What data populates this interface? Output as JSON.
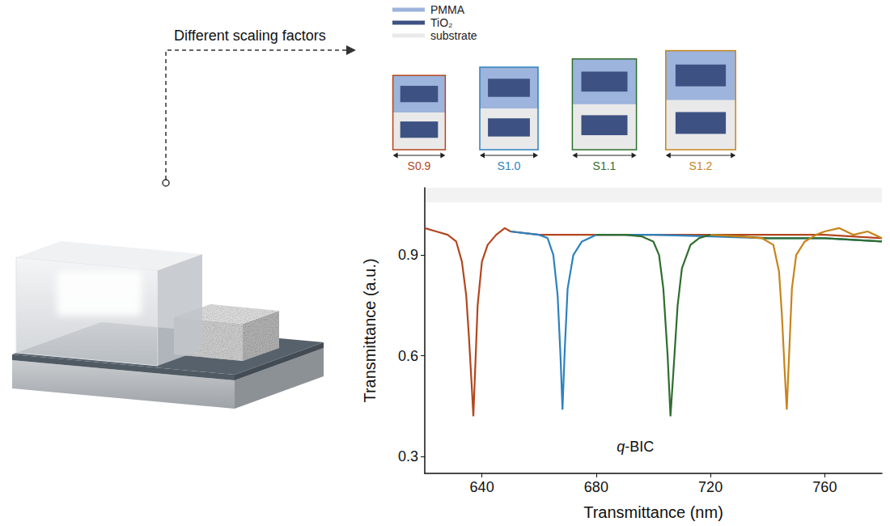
{
  "diagram": {
    "arrow_label": "Different scaling factors",
    "materials": [
      {
        "label": "PMMA",
        "color": "#9db4dc"
      },
      {
        "label": "TiO₂",
        "color": "#3d5282"
      },
      {
        "label": "substrate",
        "color": "#e9e9e9"
      }
    ]
  },
  "chart_data": {
    "type": "line",
    "x_label": "Transmittance (nm)",
    "y_label": "Transmittance (a.u.)",
    "annotation": "q-BIC",
    "xlim": [
      620,
      780
    ],
    "xticks": [
      640,
      680,
      720,
      760
    ],
    "ylim": [
      0.25,
      1.1
    ],
    "yticks": [
      0.3,
      0.6,
      0.9
    ],
    "grid": false,
    "series": [
      {
        "name": "S0.9",
        "scaling_factor": 0.9,
        "color": "#b3471e",
        "x": [
          620,
          624,
          628,
          631,
          633,
          634.5,
          635.5,
          636.5,
          637,
          637.6,
          638.5,
          640,
          642,
          645,
          648,
          650,
          660,
          680,
          700,
          720,
          740,
          760,
          780
        ],
        "values": [
          0.98,
          0.97,
          0.96,
          0.94,
          0.88,
          0.78,
          0.65,
          0.5,
          0.42,
          0.55,
          0.75,
          0.88,
          0.93,
          0.96,
          0.98,
          0.97,
          0.96,
          0.96,
          0.96,
          0.96,
          0.96,
          0.96,
          0.95
        ]
      },
      {
        "name": "S1.0",
        "scaling_factor": 1.0,
        "color": "#2d82bf",
        "x": [
          650,
          655,
          660,
          663,
          665,
          666.5,
          667.5,
          668.2,
          669,
          670,
          672,
          675,
          680,
          700,
          720,
          740,
          760,
          780
        ],
        "values": [
          0.97,
          0.965,
          0.96,
          0.95,
          0.9,
          0.78,
          0.6,
          0.44,
          0.62,
          0.8,
          0.9,
          0.94,
          0.96,
          0.96,
          0.955,
          0.95,
          0.95,
          0.94
        ]
      },
      {
        "name": "S1.1",
        "scaling_factor": 1.1,
        "color": "#2f6e2f",
        "x": [
          680,
          690,
          696,
          700,
          702,
          703.5,
          705,
          706,
          707,
          708.5,
          710,
          713,
          716,
          720,
          740,
          760,
          780
        ],
        "values": [
          0.96,
          0.96,
          0.955,
          0.94,
          0.9,
          0.8,
          0.6,
          0.42,
          0.55,
          0.75,
          0.86,
          0.93,
          0.95,
          0.96,
          0.95,
          0.95,
          0.94
        ]
      },
      {
        "name": "S1.2",
        "scaling_factor": 1.2,
        "color": "#c8841c",
        "x": [
          720,
          730,
          738,
          742,
          744,
          745,
          746,
          746.7,
          747.5,
          748.5,
          750,
          753,
          757,
          760,
          765,
          770,
          775,
          780
        ],
        "values": [
          0.96,
          0.955,
          0.95,
          0.93,
          0.85,
          0.72,
          0.55,
          0.44,
          0.6,
          0.8,
          0.9,
          0.94,
          0.96,
          0.97,
          0.98,
          0.96,
          0.97,
          0.95
        ]
      }
    ]
  }
}
